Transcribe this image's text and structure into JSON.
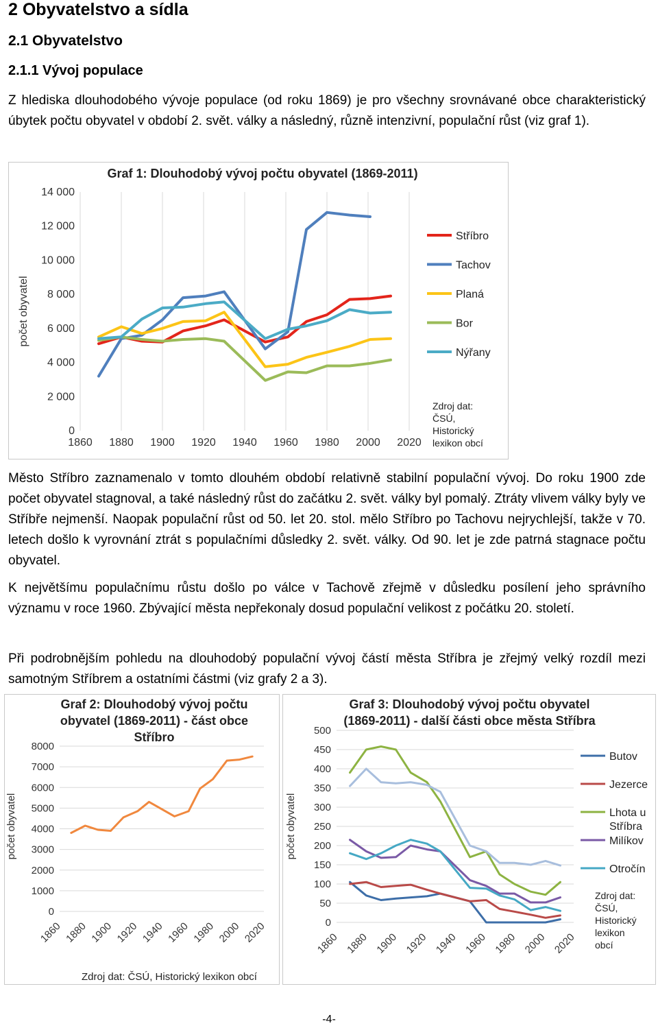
{
  "headings": {
    "h1": "2  Obyvatelstvo a sídla",
    "h2": "2.1  Obyvatelstvo",
    "h3": "2.1.1  Vývoj populace"
  },
  "paragraphs": [
    "Z hlediska dlouhodobého vývoje populace (od roku 1869) je pro všechny srovnávané obce charakteristický úbytek počtu obyvatel v období 2. svět. války a následný, různě intenzivní, populační růst (viz graf 1).",
    "Město Stříbro zaznamenalo v tomto dlouhém období relativně stabilní populační vývoj. Do roku 1900 zde počet obyvatel stagnoval, a také následný růst do začátku 2. svět. války byl pomalý. Ztráty vlivem války byly ve Stříbře nejmenší. Naopak populační růst od 50. let 20. stol. mělo Stříbro po Tachovu nejrychlejší, takže v 70. letech došlo k vyrovnání ztrát s populačními důsledky 2. svět. války. Od 90. let je zde patrná stagnace počtu obyvatel.",
    "K největšímu populačnímu růstu došlo po válce v Tachově zřejmě v důsledku posílení jeho správního významu v roce 1960. Zbývající města nepřekonaly dosud populační velikost z počátku 20. století.",
    "Při podrobnějším pohledu na dlouhodobý populační vývoj částí města Stříbra je zřejmý velký rozdíl mezi samotným Stříbrem a ostatními částmi (viz grafy 2 a 3)."
  ],
  "page_number": "-4-",
  "chart_data": [
    {
      "type": "line",
      "title": "Graf 1: Dlouhodobý vývoj počtu obyvatel (1869-2011)",
      "ylabel": "počet obyvatel",
      "ylim": [
        0,
        14000
      ],
      "xlim": [
        1860,
        2020
      ],
      "yticks": [
        "0",
        "2 000",
        "4 000",
        "6 000",
        "8 000",
        "10 000",
        "12 000",
        "14 000"
      ],
      "xticks": [
        "1860",
        "1880",
        "1900",
        "1920",
        "1940",
        "1960",
        "1980",
        "2000",
        "2020"
      ],
      "legend_position": "right",
      "source": "Zdroj dat: ČSÚ, Historický lexikon obcí",
      "x": [
        1869,
        1880,
        1890,
        1900,
        1910,
        1921,
        1930,
        1950,
        1961,
        1970,
        1980,
        1991,
        2001,
        2011
      ],
      "series": [
        {
          "name": "Stříbro",
          "color": "#e3251b",
          "values": [
            5100,
            5500,
            5250,
            5200,
            5850,
            6150,
            6500,
            5200,
            5500,
            6400,
            6800,
            7700,
            7750,
            7900
          ]
        },
        {
          "name": "Tachov",
          "color": "#4f7fbd",
          "values": [
            3200,
            5400,
            5600,
            6500,
            7800,
            7900,
            8150,
            4800,
            5800,
            11800,
            12800,
            12650,
            12550,
            null
          ]
        },
        {
          "name": "Planá",
          "color": "#fcc417",
          "values": [
            5500,
            6100,
            5700,
            6000,
            6400,
            6450,
            6950,
            3750,
            3900,
            4300,
            4600,
            4950,
            5350,
            5400
          ]
        },
        {
          "name": "Bor",
          "color": "#9bbb59",
          "values": [
            5300,
            5500,
            5350,
            5250,
            5350,
            5400,
            5250,
            2950,
            3450,
            3400,
            3800,
            3800,
            3950,
            4150
          ]
        },
        {
          "name": "Nýřany",
          "color": "#4babc6",
          "values": [
            5400,
            5500,
            6550,
            7200,
            7250,
            7450,
            7550,
            5400,
            5950,
            6150,
            6450,
            7100,
            6900,
            6950
          ]
        }
      ]
    },
    {
      "type": "line",
      "title": "Graf 2: Dlouhodobý vývoj počtu obyvatel (1869-2011) - část obce Stříbro",
      "ylabel": "počet obyvatel",
      "ylim": [
        0,
        8000
      ],
      "xlim": [
        1860,
        2020
      ],
      "yticks": [
        "0",
        "1000",
        "2000",
        "3000",
        "4000",
        "5000",
        "6000",
        "7000",
        "8000"
      ],
      "xticks": [
        "1860",
        "1880",
        "1900",
        "1920",
        "1940",
        "1960",
        "1980",
        "2000",
        "2020"
      ],
      "source": "Zdroj dat: ČSÚ, Historický lexikon obcí",
      "x": [
        1869,
        1880,
        1890,
        1900,
        1910,
        1921,
        1930,
        1950,
        1961,
        1970,
        1980,
        1991,
        2001,
        2011
      ],
      "series": [
        {
          "name": "",
          "color": "#f0883e",
          "values": [
            3800,
            4150,
            3950,
            3900,
            4550,
            4850,
            5300,
            4600,
            4850,
            5950,
            6400,
            7300,
            7350,
            7500
          ]
        }
      ]
    },
    {
      "type": "line",
      "title": "Graf 3: Dlouhodobý vývoj počtu obyvatel (1869-2011) - další části obce města Stříbra",
      "ylabel": "počet obyvatel",
      "ylim": [
        0,
        500
      ],
      "xlim": [
        1860,
        2020
      ],
      "yticks": [
        "0",
        "50",
        "100",
        "150",
        "200",
        "250",
        "300",
        "350",
        "400",
        "450",
        "500"
      ],
      "xticks": [
        "1860",
        "1880",
        "1900",
        "1920",
        "1940",
        "1960",
        "1980",
        "2000",
        "2020"
      ],
      "legend_position": "right",
      "source": "Zdroj dat: ČSÚ, Historický lexikon obcí",
      "x": [
        1869,
        1880,
        1890,
        1900,
        1910,
        1921,
        1930,
        1950,
        1961,
        1970,
        1980,
        1991,
        2001,
        2011
      ],
      "series": [
        {
          "name": "Butov",
          "color": "#3d6ea8",
          "values": [
            105,
            70,
            58,
            62,
            65,
            68,
            75,
            55,
            0,
            0,
            0,
            0,
            0,
            8
          ]
        },
        {
          "name": "Jezerce",
          "color": "#b94a48",
          "values": [
            100,
            105,
            92,
            95,
            98,
            85,
            75,
            55,
            58,
            35,
            28,
            20,
            12,
            18
          ]
        },
        {
          "name": "Lhota u Stříbra",
          "color": "#8db342",
          "values": [
            390,
            450,
            458,
            450,
            390,
            365,
            315,
            170,
            185,
            125,
            100,
            80,
            72,
            105
          ]
        },
        {
          "name": "Milíkov",
          "color": "#7a5aa6",
          "values": [
            215,
            185,
            168,
            170,
            200,
            190,
            185,
            110,
            95,
            75,
            75,
            52,
            52,
            65
          ]
        },
        {
          "name": "Otročín",
          "color": "#45a8c4",
          "values": [
            180,
            165,
            180,
            200,
            215,
            205,
            185,
            90,
            88,
            70,
            60,
            32,
            40,
            30
          ]
        },
        {
          "name": "",
          "color": "#a8bedd",
          "values": [
            355,
            400,
            365,
            362,
            365,
            358,
            340,
            200,
            185,
            155,
            155,
            150,
            160,
            148
          ]
        }
      ]
    }
  ]
}
